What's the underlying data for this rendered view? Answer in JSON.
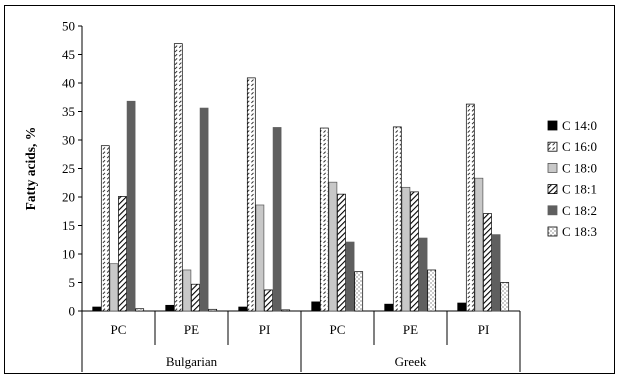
{
  "chart_data": {
    "type": "bar",
    "ylabel": "Fatty acids, %",
    "ylim": [
      0,
      50
    ],
    "yticks": [
      0,
      5,
      10,
      15,
      20,
      25,
      30,
      35,
      40,
      45,
      50
    ],
    "grid": false,
    "legend_position": "right",
    "groups": [
      "Bulgarian",
      "Greek"
    ],
    "categories": [
      "PC",
      "PE",
      "PI",
      "PC",
      "PE",
      "PI"
    ],
    "series": [
      {
        "name": "C 14:0",
        "values": [
          0.7,
          1.0,
          0.7,
          1.6,
          1.2,
          1.4
        ],
        "pattern": "solid-black"
      },
      {
        "name": "C 16:0",
        "values": [
          29.0,
          46.9,
          40.9,
          32.1,
          32.3,
          36.3
        ],
        "pattern": "dashed-white"
      },
      {
        "name": "C 18:0",
        "values": [
          8.3,
          7.2,
          18.6,
          22.6,
          21.7,
          23.3
        ],
        "pattern": "light-gray"
      },
      {
        "name": "C 18:1",
        "values": [
          20.1,
          4.7,
          3.7,
          20.5,
          20.9,
          17.1
        ],
        "pattern": "hatch"
      },
      {
        "name": "C 18:2",
        "values": [
          36.8,
          35.6,
          32.2,
          12.1,
          12.8,
          13.4
        ],
        "pattern": "dark-gray"
      },
      {
        "name": "C 18:3",
        "values": [
          0.4,
          0.3,
          0.2,
          6.9,
          7.2,
          5.0
        ],
        "pattern": "dotted-white"
      }
    ]
  }
}
